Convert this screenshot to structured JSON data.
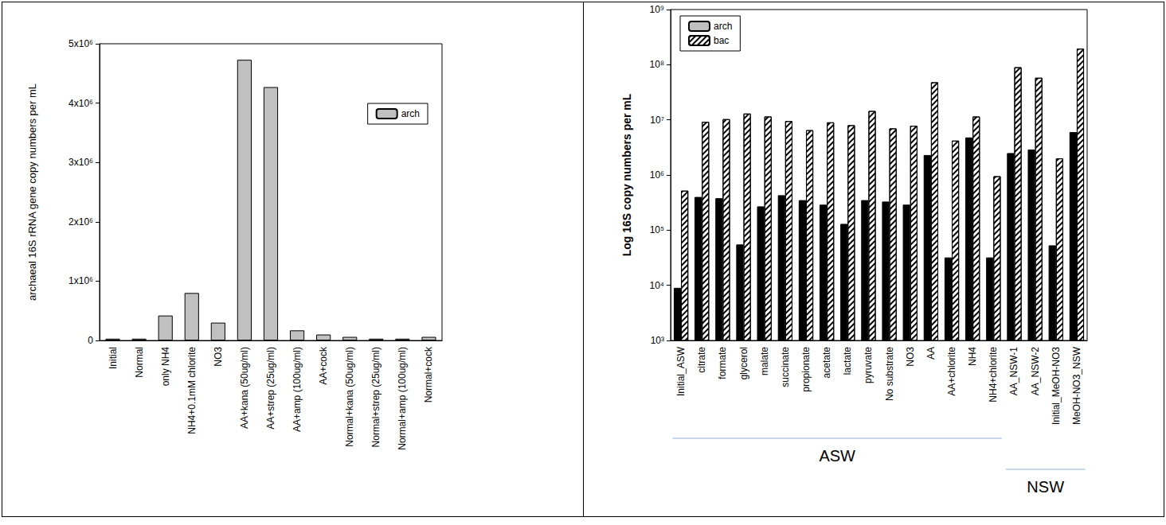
{
  "chart_data": [
    {
      "type": "bar",
      "y_label": "archaeal 16S rRNA gene copy numbers per mL",
      "categories": [
        "Initial",
        "Normal",
        "only NH4",
        "NH4+0.1mM chlorite",
        "NO3",
        "AA+kana (50ug/ml)",
        "AA+strep (25ug/ml)",
        "AA+amp (100ug/ml)",
        "AA+cock",
        "Normal+kana (50ug/ml)",
        "Normal+strep (25ug/ml)",
        "Normal+amp (100ug/ml)",
        "Normal+cock"
      ],
      "series": [
        {
          "name": "arch",
          "color": "#c0c0c0",
          "values": [
            30000,
            30000,
            420000,
            800000,
            300000,
            4730000,
            4270000,
            170000,
            100000,
            60000,
            30000,
            30000,
            60000
          ]
        }
      ],
      "ylim": [
        0,
        5000000
      ],
      "yticks": [
        0,
        {
          "value": 1000000,
          "label": "1x10⁶"
        },
        {
          "value": 2000000,
          "label": "2x10⁶"
        },
        {
          "value": 3000000,
          "label": "3x10⁶"
        },
        {
          "value": 4000000,
          "label": "4x10⁶"
        },
        {
          "value": 5000000,
          "label": "5x10⁶"
        }
      ],
      "legend": "top-right",
      "grid": false
    },
    {
      "type": "bar",
      "y_label": "Log 16S copy numbers per mL",
      "categories": [
        "Initial_ASW",
        "citrate",
        "formate",
        "glycerol",
        "malate",
        "succinate",
        "propionate",
        "acetate",
        "lactate",
        "pyruvate",
        "No substrate",
        "NO3",
        "AA",
        "AA+chlorite",
        "NH4",
        "NH4+chlorite",
        "AA_NSW-1",
        "AA_NSW-2",
        "Initial_MeOH-NO3",
        "MeOH-NO3_NSW"
      ],
      "series": [
        {
          "name": "arch",
          "color": "#000000",
          "values": [
            9000,
            400000,
            380000,
            55000,
            270000,
            430000,
            350000,
            290000,
            130000,
            350000,
            330000,
            290000,
            2300000,
            32000,
            4800000,
            32000,
            2500000,
            2900000,
            53000,
            6000000
          ]
        },
        {
          "name": "bac",
          "color": "#ffffff",
          "values": [
            520000,
            9200000,
            10300000,
            13000000,
            11500000,
            9500000,
            6500000,
            9000000,
            8000000,
            14500000,
            7000000,
            7800000,
            48000000,
            4200000,
            11500000,
            950000,
            90000000,
            58000000,
            2000000,
            195000000
          ]
        }
      ],
      "log": "y",
      "ylim": [
        1000,
        1000000000
      ],
      "yticks": [
        {
          "value": 1000,
          "label": "10³"
        },
        {
          "value": 10000,
          "label": "10⁴"
        },
        {
          "value": 100000,
          "label": "10⁵"
        },
        {
          "value": 1000000,
          "label": "10⁶"
        },
        {
          "value": 10000000,
          "label": "10⁷"
        },
        {
          "value": 100000000,
          "label": "10⁸"
        },
        {
          "value": 1000000000,
          "label": "10⁹"
        }
      ],
      "legend": "top-left",
      "grid": false,
      "annotations": [
        {
          "text": "ASW",
          "from": "Initial_ASW",
          "to": "NH4+chlorite"
        },
        {
          "text": "NSW",
          "from": "AA_NSW-1",
          "to": "MeOH-NO3_NSW"
        }
      ]
    }
  ]
}
